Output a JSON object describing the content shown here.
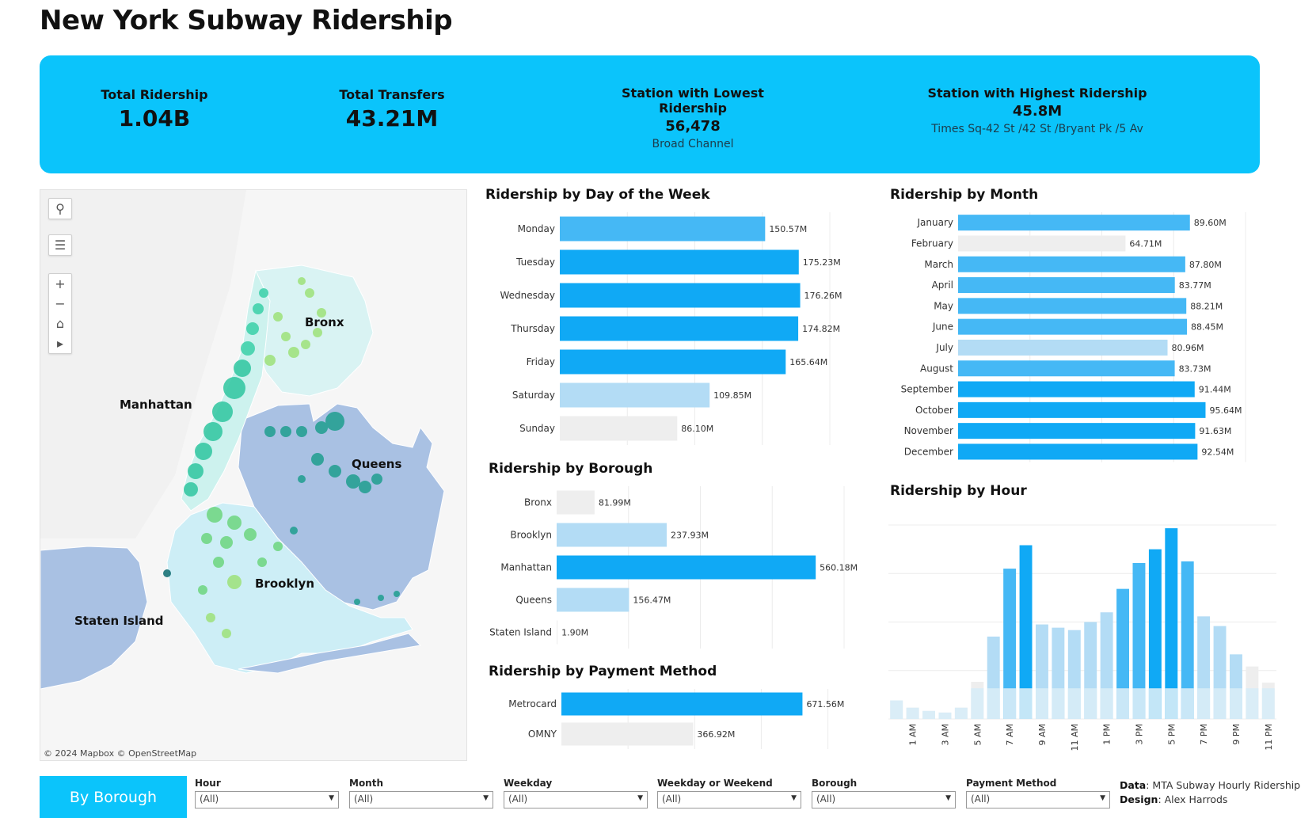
{
  "title": "New York Subway Ridership",
  "kpis": {
    "total_ridership": {
      "label": "Total Ridership",
      "value": "1.04B"
    },
    "total_transfers": {
      "label": "Total Transfers",
      "value": "43.21M"
    },
    "lowest": {
      "label": "Station with Lowest Ridership",
      "value": "56,478",
      "station": "Broad Channel"
    },
    "highest": {
      "label": "Station with Highest Ridership",
      "value": "45.8M",
      "station": "Times Sq-42 St /42 St /Bryant Pk /5 Av"
    }
  },
  "map": {
    "labels": {
      "bronx": "Bronx",
      "manhattan": "Manhattan",
      "queens": "Queens",
      "brooklyn": "Brooklyn",
      "staten_island": "Staten Island"
    },
    "attribution": "© 2024 Mapbox  © OpenStreetMap",
    "controls": [
      "search-icon",
      "layers-icon",
      "zoom-in-icon",
      "zoom-out-icon",
      "home-icon",
      "play-icon"
    ],
    "colors": {
      "land": "#a9c1e3",
      "manhattan_land": "#cdf2ee",
      "water": "#f6f6f6"
    }
  },
  "chart_data": [
    {
      "id": "weekday",
      "type": "bar",
      "orientation": "horizontal",
      "title": "Ridership by Day of the Week",
      "categories": [
        "Monday",
        "Tuesday",
        "Wednesday",
        "Thursday",
        "Friday",
        "Saturday",
        "Sunday"
      ],
      "values": [
        150.57,
        175.23,
        176.26,
        174.82,
        165.64,
        109.85,
        86.1
      ],
      "labels": [
        "150.57M",
        "175.23M",
        "176.26M",
        "174.82M",
        "165.64M",
        "109.85M",
        "86.10M"
      ],
      "unit": "M"
    },
    {
      "id": "borough",
      "type": "bar",
      "orientation": "horizontal",
      "title": "Ridership by Borough",
      "categories": [
        "Bronx",
        "Brooklyn",
        "Manhattan",
        "Queens",
        "Staten Island"
      ],
      "values": [
        81.99,
        237.93,
        560.18,
        156.47,
        1.9
      ],
      "labels": [
        "81.99M",
        "237.93M",
        "560.18M",
        "156.47M",
        "1.90M"
      ],
      "unit": "M"
    },
    {
      "id": "payment",
      "type": "bar",
      "orientation": "horizontal",
      "title": "Ridership by Payment Method",
      "categories": [
        "Metrocard",
        "OMNY"
      ],
      "values": [
        671.56,
        366.92
      ],
      "labels": [
        "671.56M",
        "366.92M"
      ],
      "unit": "M"
    },
    {
      "id": "month",
      "type": "bar",
      "orientation": "horizontal",
      "title": "Ridership by Month",
      "categories": [
        "January",
        "February",
        "March",
        "April",
        "May",
        "June",
        "July",
        "August",
        "September",
        "October",
        "November",
        "December"
      ],
      "values": [
        89.6,
        64.71,
        87.8,
        83.77,
        88.21,
        88.45,
        80.96,
        83.73,
        91.44,
        95.64,
        91.63,
        92.54
      ],
      "labels": [
        "89.60M",
        "64.71M",
        "87.80M",
        "83.77M",
        "88.21M",
        "88.45M",
        "80.96M",
        "83.73M",
        "91.44M",
        "95.64M",
        "91.63M",
        "92.54M"
      ],
      "unit": "M"
    },
    {
      "id": "hour",
      "type": "bar",
      "title": "Ridership by Hour",
      "categories": [
        "12 AM",
        "1 AM",
        "2 AM",
        "3 AM",
        "4 AM",
        "5 AM",
        "6 AM",
        "7 AM",
        "8 AM",
        "9 AM",
        "10 AM",
        "11 AM",
        "12 PM",
        "1 PM",
        "2 PM",
        "3 PM",
        "4 PM",
        "5 PM",
        "6 PM",
        "7 PM",
        "8 PM",
        "9 PM",
        "10 PM",
        "11 PM"
      ],
      "tick_labels": [
        "1 AM",
        "3 AM",
        "5 AM",
        "7 AM",
        "9 AM",
        "11 AM",
        "1 PM",
        "3 PM",
        "5 PM",
        "7 PM",
        "9 PM",
        "11 PM"
      ],
      "values": [
        23,
        14,
        10,
        8,
        14,
        46,
        102,
        186,
        215,
        117,
        113,
        110,
        120,
        132,
        161,
        193,
        210,
        236,
        195,
        127,
        115,
        80,
        65,
        45
      ],
      "note": "values are relative bar heights read from an unlabeled axis"
    }
  ],
  "colors": {
    "accent": "#0bc4fb",
    "bar_high": "#10a9f5",
    "bar_mid": "#45b8f5",
    "bar_light": "#b3dcf5",
    "bar_lowest": "#eeeeee"
  },
  "filters": {
    "tab_label": "By Borough",
    "items": [
      {
        "label": "Hour",
        "value": "(All)"
      },
      {
        "label": "Month",
        "value": "(All)"
      },
      {
        "label": "Weekday",
        "value": "(All)"
      },
      {
        "label": "Weekday or Weekend",
        "value": "(All)"
      },
      {
        "label": "Borough",
        "value": "(All)"
      },
      {
        "label": "Payment Method",
        "value": "(All)"
      }
    ]
  },
  "credits": {
    "data_label": "Data",
    "data_value": ": MTA Subway Hourly Ridership",
    "design_label": "Design",
    "design_value": ": Alex Harrods"
  }
}
